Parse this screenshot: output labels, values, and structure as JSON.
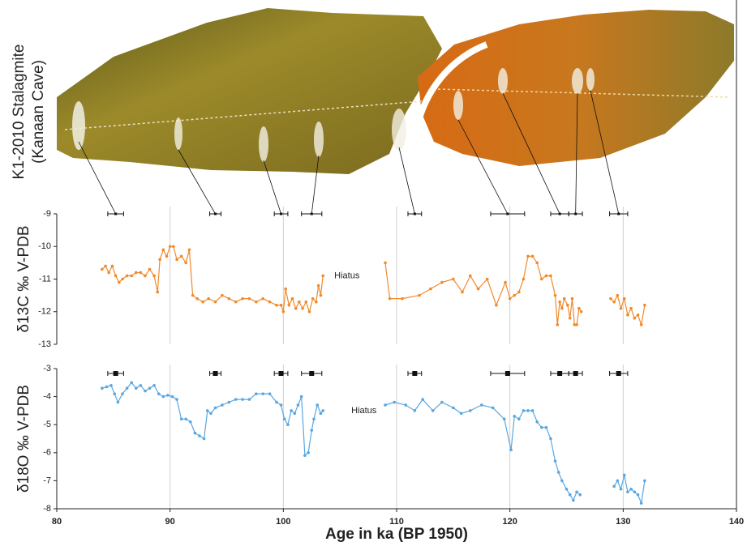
{
  "figure": {
    "image_label": [
      "K1-2010 Stalagmite",
      "(Kanaan Cave)"
    ]
  },
  "chart_data": [
    {
      "type": "line",
      "ylabel": "δ13C ‰ V-PDB",
      "annotation": "Hiatus",
      "annotation_x": 104.5,
      "annotation_y": -10.9,
      "xlim": [
        80,
        140
      ],
      "xgrid": [
        90,
        100,
        110,
        120,
        130
      ],
      "ylim": [
        -13,
        -9
      ],
      "yticks": [
        -9,
        -10,
        -11,
        -12,
        -13
      ],
      "dates": [
        85.2,
        94.0,
        99.8,
        102.5,
        111.6,
        119.8,
        124.4,
        125.8,
        129.6
      ],
      "date_errors": [
        0.7,
        0.5,
        0.6,
        0.9,
        0.6,
        1.5,
        0.8,
        0.6,
        0.8
      ],
      "x": [
        84.0,
        84.3,
        84.6,
        84.9,
        85.2,
        85.5,
        85.8,
        86.2,
        86.6,
        87.0,
        87.4,
        87.8,
        88.2,
        88.6,
        88.9,
        89.1,
        89.4,
        89.7,
        90.0,
        90.3,
        90.6,
        91.0,
        91.4,
        91.7,
        92.0,
        92.4,
        92.9,
        93.4,
        94.0,
        94.6,
        95.2,
        95.8,
        96.4,
        97.0,
        97.6,
        98.2,
        98.8,
        99.4,
        99.8,
        100.0,
        100.2,
        100.5,
        100.8,
        101.1,
        101.4,
        101.7,
        102.0,
        102.3,
        102.6,
        102.9,
        103.1,
        103.3,
        103.5,
        null,
        109.0,
        109.4,
        110.5,
        112.0,
        113.0,
        114.0,
        115.0,
        115.8,
        116.5,
        117.2,
        118.0,
        118.8,
        119.6,
        120.0,
        120.4,
        120.8,
        121.2,
        121.6,
        122.0,
        122.4,
        122.8,
        123.2,
        123.6,
        124.0,
        124.2,
        124.4,
        124.6,
        124.8,
        125.1,
        125.3,
        125.5,
        125.7,
        125.9,
        126.1,
        126.3,
        null,
        128.9,
        129.2,
        129.5,
        129.8,
        130.1,
        130.4,
        130.7,
        131.0,
        131.3,
        131.6,
        131.9
      ],
      "series": [
        {
          "color": "#f08a2c",
          "values": [
            -10.7,
            -10.6,
            -10.8,
            -10.6,
            -10.9,
            -11.1,
            -11.0,
            -10.9,
            -10.9,
            -10.8,
            -10.8,
            -10.9,
            -10.7,
            -10.9,
            -11.4,
            -10.4,
            -10.1,
            -10.3,
            -10.0,
            -10.0,
            -10.4,
            -10.3,
            -10.5,
            -10.1,
            -11.5,
            -11.6,
            -11.7,
            -11.6,
            -11.7,
            -11.5,
            -11.6,
            -11.7,
            -11.6,
            -11.6,
            -11.7,
            -11.6,
            -11.7,
            -11.8,
            -11.8,
            -12.0,
            -11.3,
            -11.8,
            -11.6,
            -11.9,
            -11.7,
            -11.9,
            -11.7,
            -12.0,
            -11.6,
            -11.7,
            -11.2,
            -11.5,
            -10.9,
            null,
            -10.5,
            -11.6,
            -11.6,
            -11.5,
            -11.3,
            -11.1,
            -11.0,
            -11.4,
            -10.9,
            -11.3,
            -11.0,
            -11.8,
            -11.1,
            -11.6,
            -11.5,
            -11.4,
            -11.0,
            -10.3,
            -10.3,
            -10.5,
            -11.0,
            -10.9,
            -10.9,
            -11.5,
            -12.4,
            -11.7,
            -11.9,
            -11.6,
            -11.8,
            -12.2,
            -11.6,
            -12.4,
            -12.4,
            -11.9,
            -12.0,
            null,
            -11.6,
            -11.7,
            -11.5,
            -11.9,
            -11.6,
            -12.1,
            -11.9,
            -12.2,
            -12.1,
            -12.4,
            -11.8
          ]
        }
      ]
    },
    {
      "type": "line",
      "ylabel": "δ18O ‰ V-PDB",
      "annotation": "Hiatus",
      "annotation_x": 106,
      "annotation_y": -4.5,
      "xlabel": "Age in ka (BP 1950)",
      "xlim": [
        80,
        140
      ],
      "xticks": [
        80,
        90,
        100,
        110,
        120,
        130,
        140
      ],
      "xgrid": [
        90,
        100,
        110,
        120,
        130
      ],
      "ylim": [
        -8,
        -3
      ],
      "yticks": [
        -3,
        -4,
        -5,
        -6,
        -7,
        -8
      ],
      "dates": [
        85.2,
        94.0,
        99.8,
        102.5,
        111.6,
        119.8,
        124.4,
        125.8,
        129.6
      ],
      "date_errors": [
        0.7,
        0.5,
        0.6,
        0.9,
        0.6,
        1.5,
        0.8,
        0.6,
        0.8
      ],
      "x": [
        84.0,
        84.4,
        84.8,
        85.1,
        85.4,
        85.8,
        86.2,
        86.6,
        87.0,
        87.4,
        87.8,
        88.2,
        88.6,
        89.0,
        89.4,
        89.8,
        90.2,
        90.6,
        91.0,
        91.4,
        91.8,
        92.2,
        92.6,
        93.0,
        93.3,
        93.6,
        94.0,
        94.6,
        95.2,
        95.8,
        96.4,
        97.0,
        97.6,
        98.2,
        98.8,
        99.4,
        99.8,
        100.1,
        100.4,
        100.7,
        101.0,
        101.3,
        101.6,
        101.9,
        102.2,
        102.5,
        102.7,
        103.0,
        103.3,
        103.5,
        null,
        109.0,
        109.8,
        110.8,
        111.6,
        112.3,
        113.2,
        114.0,
        115.0,
        115.7,
        116.5,
        117.5,
        118.5,
        119.5,
        120.1,
        120.4,
        120.8,
        121.2,
        121.6,
        122.0,
        122.4,
        122.8,
        123.2,
        123.6,
        124.0,
        124.3,
        124.6,
        125.0,
        125.3,
        125.6,
        125.9,
        126.2,
        null,
        129.2,
        129.5,
        129.8,
        130.1,
        130.4,
        130.7,
        131.0,
        131.3,
        131.6,
        131.9
      ],
      "series": [
        {
          "color": "#5aa7e0",
          "values": [
            -3.7,
            -3.65,
            -3.6,
            -3.9,
            -4.2,
            -3.9,
            -3.7,
            -3.5,
            -3.7,
            -3.6,
            -3.8,
            -3.7,
            -3.6,
            -3.9,
            -4.0,
            -3.95,
            -4.0,
            -4.1,
            -4.8,
            -4.8,
            -4.9,
            -5.3,
            -5.4,
            -5.5,
            -4.5,
            -4.6,
            -4.4,
            -4.3,
            -4.2,
            -4.1,
            -4.1,
            -4.1,
            -3.9,
            -3.9,
            -3.9,
            -4.2,
            -4.3,
            -4.8,
            -5.0,
            -4.5,
            -4.6,
            -4.3,
            -4.0,
            -6.1,
            -6.0,
            -5.2,
            -4.8,
            -4.3,
            -4.6,
            -4.5,
            null,
            -4.3,
            -4.2,
            -4.3,
            -4.5,
            -4.1,
            -4.5,
            -4.2,
            -4.4,
            -4.6,
            -4.5,
            -4.3,
            -4.4,
            -4.8,
            -5.9,
            -4.7,
            -4.8,
            -4.5,
            -4.5,
            -4.5,
            -4.9,
            -5.1,
            -5.1,
            -5.5,
            -6.3,
            -6.7,
            -7.0,
            -7.3,
            -7.5,
            -7.7,
            -7.4,
            -7.5,
            null,
            -7.2,
            -7.0,
            -7.3,
            -6.8,
            -7.4,
            -7.3,
            -7.4,
            -7.5,
            -7.8,
            -7.0
          ]
        }
      ]
    }
  ]
}
